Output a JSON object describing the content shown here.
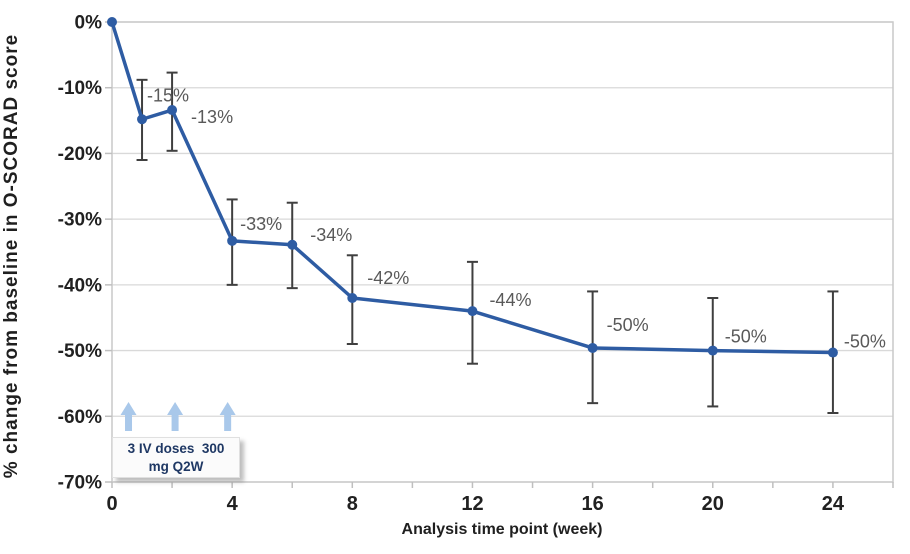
{
  "chart_data": {
    "type": "line",
    "title": "",
    "xlabel": "Analysis time point (week)",
    "ylabel": "% change from baseline in O-SCORAD score",
    "xlim": [
      0,
      26
    ],
    "ylim": [
      -70,
      0
    ],
    "grid": "horizontal",
    "legend": "none",
    "y_ticks": [
      {
        "label": "0%",
        "value": 0
      },
      {
        "label": "-10%",
        "value": -10
      },
      {
        "label": "-20%",
        "value": -20
      },
      {
        "label": "-30%",
        "value": -30
      },
      {
        "label": "-40%",
        "value": -40
      },
      {
        "label": "-50%",
        "value": -50
      },
      {
        "label": "-60%",
        "value": -60
      },
      {
        "label": "-70%",
        "value": -70
      }
    ],
    "x_ticks": {
      "major": [
        {
          "label": "0",
          "value": 0
        },
        {
          "label": "4",
          "value": 4
        },
        {
          "label": "8",
          "value": 8
        },
        {
          "label": "12",
          "value": 12
        },
        {
          "label": "16",
          "value": 16
        },
        {
          "label": "20",
          "value": 20
        },
        {
          "label": "24",
          "value": 24
        }
      ],
      "minor_step": 2
    },
    "series": [
      {
        "name": "% change from baseline in O-SCORAD score",
        "points": [
          {
            "week": 0,
            "value": 0,
            "label": "",
            "err_top": null,
            "err_bot": null,
            "label_dx": 0,
            "label_dy": 0
          },
          {
            "week": 1,
            "value": -14.8,
            "label": "-15%",
            "err_top": -8.8,
            "err_bot": -21.0,
            "label_dx": 26,
            "label_dy": -24
          },
          {
            "week": 2,
            "value": -13.4,
            "label": "-13%",
            "err_top": -7.7,
            "err_bot": -19.6,
            "label_dx": 40,
            "label_dy": 7
          },
          {
            "week": 4,
            "value": -33.3,
            "label": "-33%",
            "err_top": -27.0,
            "err_bot": -40.0,
            "label_dx": 29,
            "label_dy": -17
          },
          {
            "week": 6,
            "value": -33.9,
            "label": "-34%",
            "err_top": -27.5,
            "err_bot": -40.5,
            "label_dx": 39,
            "label_dy": -10
          },
          {
            "week": 8,
            "value": -42.0,
            "label": "-42%",
            "err_top": -35.5,
            "err_bot": -49.0,
            "label_dx": 36,
            "label_dy": -20
          },
          {
            "week": 12,
            "value": -44.0,
            "label": "-44%",
            "err_top": -36.5,
            "err_bot": -52.0,
            "label_dx": 38,
            "label_dy": -11
          },
          {
            "week": 16,
            "value": -49.6,
            "label": "-50%",
            "err_top": -41.0,
            "err_bot": -58.0,
            "label_dx": 35,
            "label_dy": -23
          },
          {
            "week": 20,
            "value": -50.0,
            "label": "-50%",
            "err_top": -42.0,
            "err_bot": -58.5,
            "label_dx": 33,
            "label_dy": -14
          },
          {
            "week": 24,
            "value": -50.3,
            "label": "-50%",
            "err_top": -41.0,
            "err_bot": -59.5,
            "label_dx": 32,
            "label_dy": -11
          }
        ]
      }
    ],
    "annotation": {
      "line1": "3 IV doses  300",
      "line2": "mg Q2W",
      "dose_arrow_weeks": [
        0.55,
        2.1,
        3.85
      ]
    },
    "colors": {
      "line": "#2E5CA3",
      "marker": "#2E5CA3",
      "error_bar": "#3F3F3F",
      "gridline": "#D9D9D9",
      "plot_border": "#C9C9C9",
      "tick_mark": "#BFBFBF",
      "data_label": "#595959",
      "tick_label": "#212121",
      "axis_title": "#1F1F1F",
      "dose_arrow": "#A9C8EA",
      "annotation_text": "#1F3864",
      "annotation_bg": "#FBFBFB",
      "annotation_border": "#E0E0E0"
    }
  }
}
